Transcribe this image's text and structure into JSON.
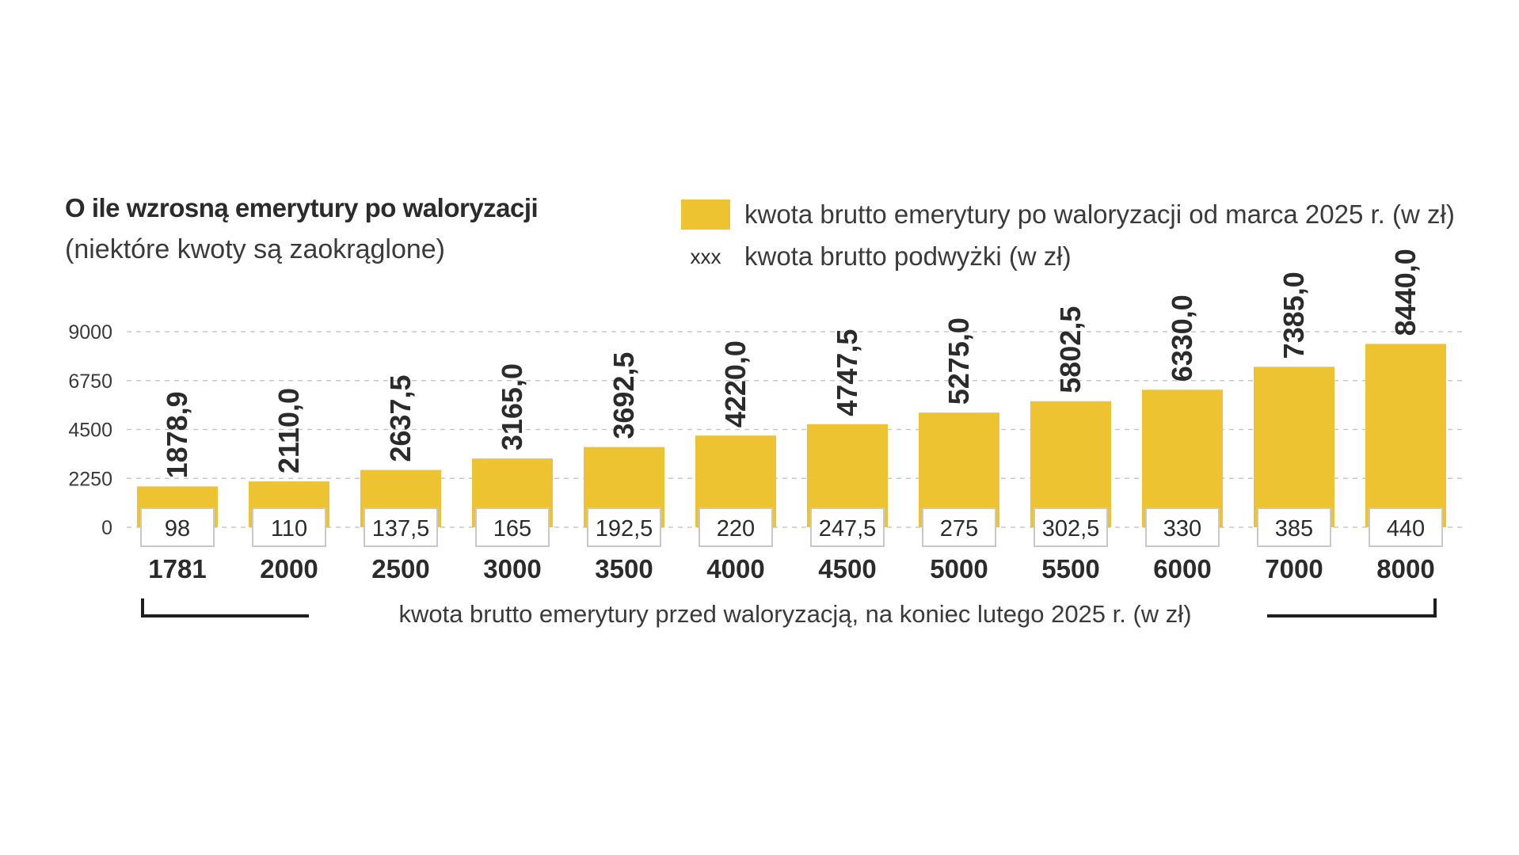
{
  "title": "O ile wzrosną emerytury po waloryzacji",
  "subtitle": "(niektóre kwoty są zaokrąglone)",
  "legend": {
    "bar_label": "kwota brutto emerytury po waloryzacji od marca 2025 r. (w zł)",
    "xxx_symbol": "xxx",
    "raise_label": "kwota brutto podwyżki (w zł)"
  },
  "colors": {
    "bar": "#edc332",
    "text": "#2b2b2b",
    "grid": "#c8c8c8",
    "box_border": "#c8c8c8"
  },
  "chart_data": {
    "type": "bar",
    "title": "O ile wzrosną emerytury po waloryzacji",
    "xlabel": "kwota brutto emerytury przed waloryzacją, na koniec lutego 2025 r. (w zł)",
    "ylabel": "",
    "ylim": [
      0,
      9000
    ],
    "yticks": [
      0,
      2250,
      4500,
      6750,
      9000
    ],
    "ytick_labels": [
      "0",
      "2250",
      "4500",
      "6750",
      "9000"
    ],
    "grid": true,
    "categories": [
      "1781",
      "2000",
      "2500",
      "3000",
      "3500",
      "4000",
      "4500",
      "5000",
      "5500",
      "6000",
      "7000",
      "8000"
    ],
    "series": [
      {
        "name": "kwota brutto emerytury po waloryzacji od marca 2025 r. (w zł)",
        "values": [
          1878.9,
          2110.0,
          2637.5,
          3165.0,
          3692.5,
          4220.0,
          4747.5,
          5275.0,
          5802.5,
          6330.0,
          7385.0,
          8440.0
        ],
        "labels": [
          "1878,9",
          "2110,0",
          "2637,5",
          "3165,0",
          "3692,5",
          "4220,0",
          "4747,5",
          "5275,0",
          "5802,5",
          "6330,0",
          "7385,0",
          "8440,0"
        ]
      },
      {
        "name": "kwota brutto podwyżki (w zł)",
        "values": [
          98,
          110,
          137.5,
          165,
          192.5,
          220,
          247.5,
          275,
          302.5,
          330,
          385,
          440
        ],
        "labels": [
          "98",
          "110",
          "137,5",
          "165",
          "192,5",
          "220",
          "247,5",
          "275",
          "302,5",
          "330",
          "385",
          "440"
        ]
      }
    ]
  }
}
